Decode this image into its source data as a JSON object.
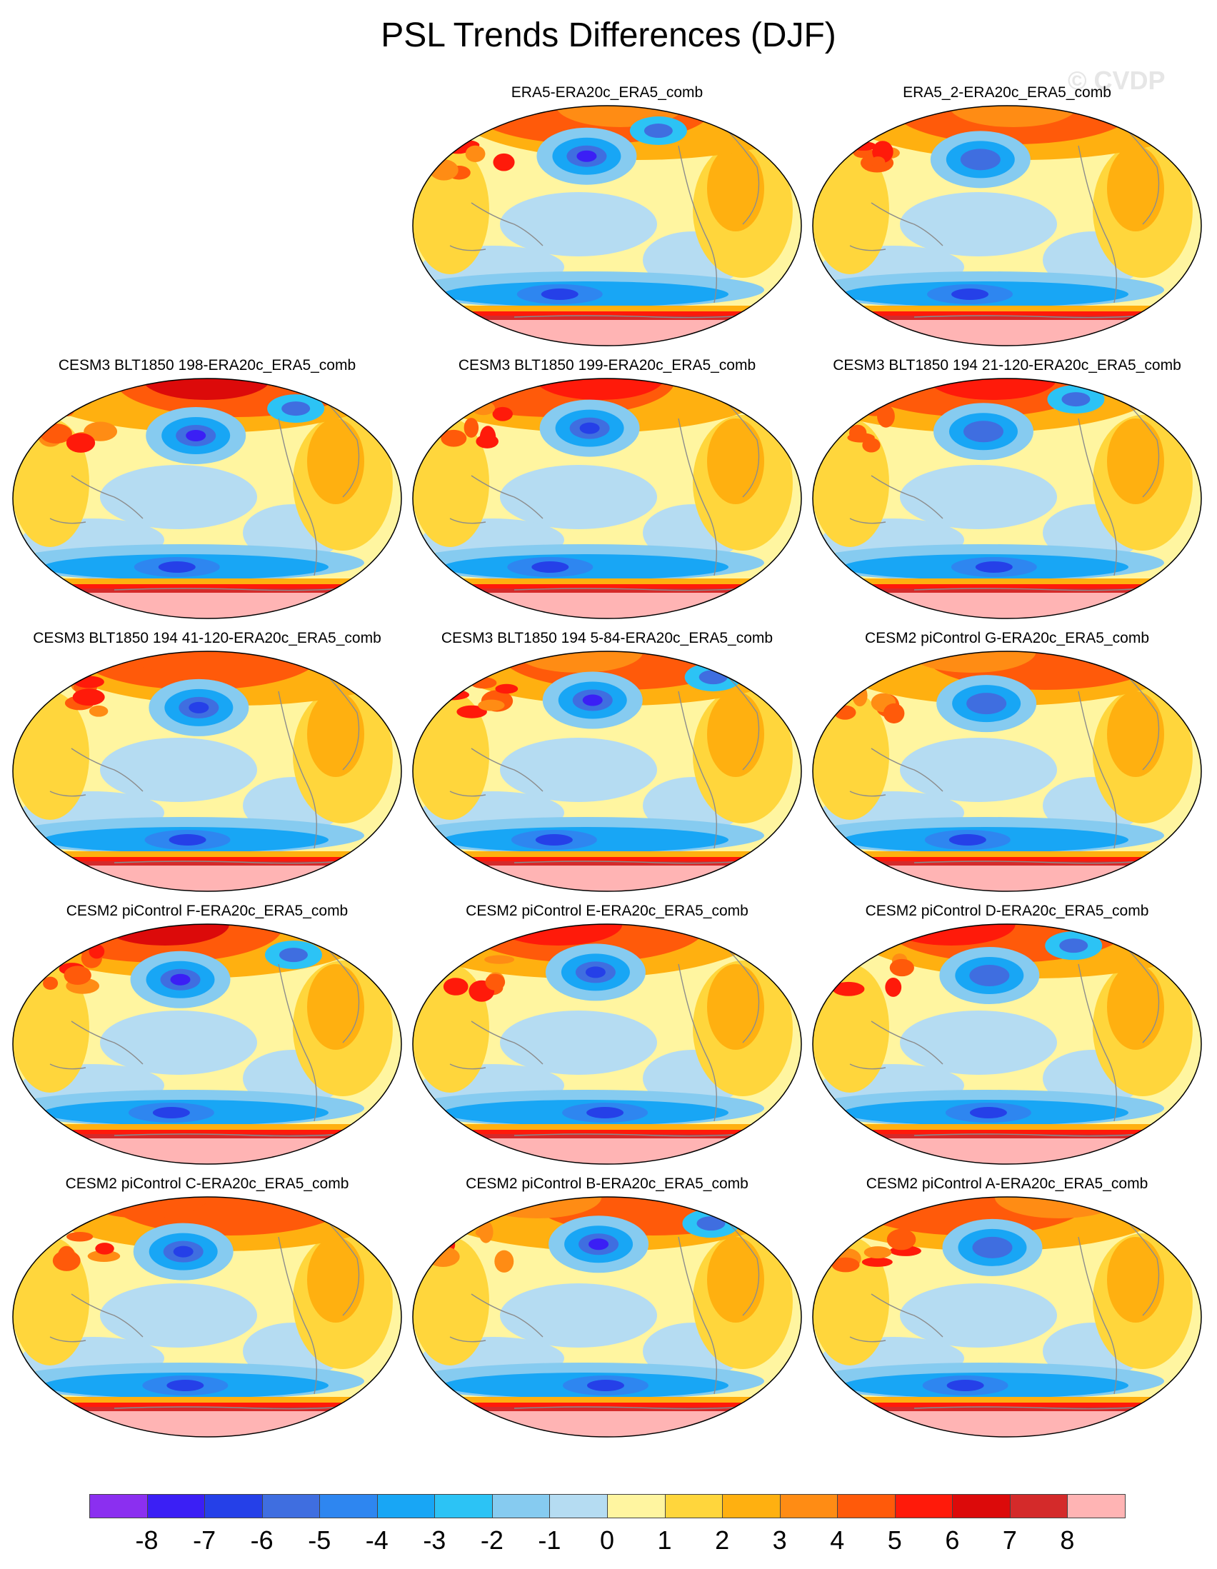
{
  "figure": {
    "title": "PSL Trends Differences (DJF)",
    "watermark": "© CVDP"
  },
  "panels": [
    {
      "title": "ERA5-ERA20c_ERA5_comb",
      "variant": 0
    },
    {
      "title": "ERA5_2-ERA20c_ERA5_comb",
      "variant": 1
    },
    {
      "title": "CESM3 BLT1850 198-ERA20c_ERA5_comb",
      "variant": 2
    },
    {
      "title": "CESM3 BLT1850 199-ERA20c_ERA5_comb",
      "variant": 3
    },
    {
      "title": "CESM3 BLT1850 194 21-120-ERA20c_ERA5_comb",
      "variant": 4
    },
    {
      "title": "CESM3 BLT1850 194 41-120-ERA20c_ERA5_comb",
      "variant": 5
    },
    {
      "title": "CESM3 BLT1850 194 5-84-ERA20c_ERA5_comb",
      "variant": 6
    },
    {
      "title": "CESM2 piControl G-ERA20c_ERA5_comb",
      "variant": 7
    },
    {
      "title": "CESM2 piControl F-ERA20c_ERA5_comb",
      "variant": 8
    },
    {
      "title": "CESM2 piControl E-ERA20c_ERA5_comb",
      "variant": 9
    },
    {
      "title": "CESM2 piControl D-ERA20c_ERA5_comb",
      "variant": 10
    },
    {
      "title": "CESM2 piControl C-ERA20c_ERA5_comb",
      "variant": 11
    },
    {
      "title": "CESM2 piControl B-ERA20c_ERA5_comb",
      "variant": 12
    },
    {
      "title": "CESM2 piControl A-ERA20c_ERA5_comb",
      "variant": 13
    }
  ],
  "colorbar": {
    "labels": [
      "-8",
      "-7",
      "-6",
      "-5",
      "-4",
      "-3",
      "-2",
      "-1",
      "0",
      "1",
      "2",
      "3",
      "4",
      "5",
      "6",
      "7",
      "8"
    ],
    "colors": [
      "#8b2ff0",
      "#3b1ff5",
      "#2540e8",
      "#3f6ee0",
      "#2e86f0",
      "#18a6f5",
      "#2cc3f5",
      "#86cbf0",
      "#b5dcf2",
      "#fff5a0",
      "#ffd63c",
      "#ffb010",
      "#ff8c14",
      "#ff5a0a",
      "#ff1a0a",
      "#dc0a0a",
      "#d42a2a",
      "#ffb4b4"
    ]
  }
}
